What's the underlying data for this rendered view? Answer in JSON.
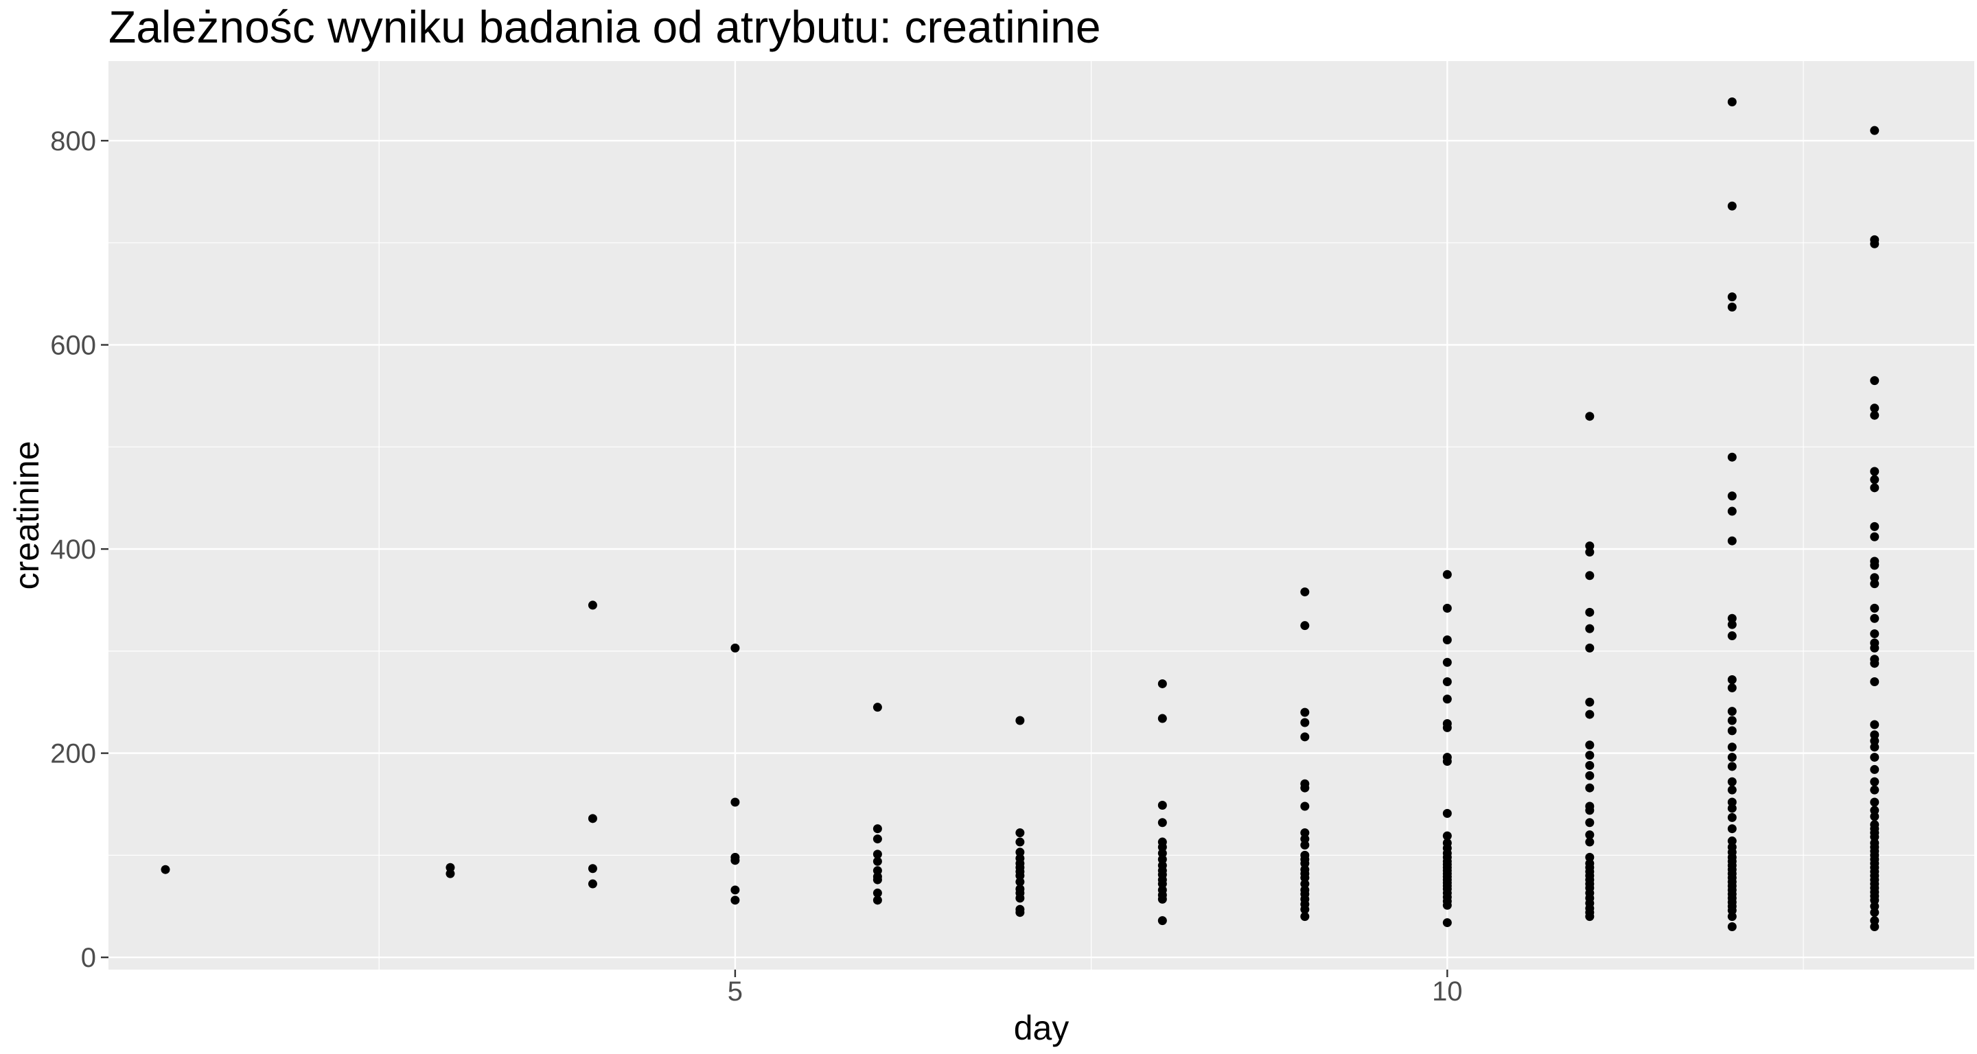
{
  "chart_data": {
    "type": "scatter",
    "title": "Zależnośc wyniku badania od atrybutu:  creatinine",
    "xlabel": "day",
    "ylabel": "creatinine",
    "xlim": [
      0.6,
      13.7
    ],
    "ylim": [
      -12,
      878
    ],
    "x_ticks": [
      5,
      10
    ],
    "y_ticks": [
      0,
      200,
      400,
      600,
      800
    ],
    "x_tick_labels": [
      "5",
      "10"
    ],
    "y_tick_labels": [
      "0",
      "200",
      "400",
      "600",
      "800"
    ],
    "grid": true,
    "legend": "none",
    "colors": {
      "panel": "#ebebeb",
      "grid": "#ffffff",
      "point": "#000000"
    },
    "points": [
      {
        "day": 1,
        "values": [
          86
        ]
      },
      {
        "day": 3,
        "values": [
          88,
          82
        ]
      },
      {
        "day": 4,
        "values": [
          345,
          136,
          87,
          72
        ]
      },
      {
        "day": 5,
        "values": [
          303,
          152,
          98,
          95,
          66,
          56
        ]
      },
      {
        "day": 6,
        "values": [
          245,
          126,
          116,
          101,
          94,
          85,
          79,
          76,
          63,
          56
        ]
      },
      {
        "day": 7,
        "values": [
          232,
          122,
          113,
          103,
          97,
          92,
          88,
          84,
          80,
          74,
          67,
          63,
          58,
          47,
          44
        ]
      },
      {
        "day": 8,
        "values": [
          268,
          234,
          149,
          132,
          113,
          108,
          102,
          96,
          90,
          85,
          81,
          76,
          72,
          66,
          61,
          57,
          36
        ]
      },
      {
        "day": 9,
        "values": [
          358,
          325,
          240,
          230,
          216,
          170,
          166,
          148,
          122,
          116,
          110,
          100,
          96,
          92,
          86,
          82,
          78,
          72,
          66,
          62,
          57,
          52,
          47,
          40
        ]
      },
      {
        "day": 10,
        "values": [
          375,
          342,
          311,
          289,
          270,
          253,
          229,
          225,
          196,
          192,
          141,
          119,
          112,
          107,
          102,
          98,
          94,
          91,
          88,
          85,
          82,
          79,
          76,
          73,
          70,
          67,
          63,
          59,
          55,
          51,
          34
        ]
      },
      {
        "day": 11,
        "values": [
          530,
          403,
          397,
          374,
          338,
          322,
          303,
          250,
          238,
          208,
          198,
          188,
          178,
          166,
          148,
          144,
          132,
          120,
          113,
          98,
          92,
          88,
          84,
          80,
          76,
          72,
          68,
          63,
          58,
          53,
          48,
          44,
          40
        ]
      },
      {
        "day": 12,
        "values": [
          838,
          736,
          647,
          637,
          490,
          452,
          437,
          408,
          332,
          326,
          315,
          272,
          264,
          241,
          232,
          222,
          206,
          196,
          187,
          172,
          164,
          152,
          146,
          137,
          126,
          114,
          108,
          103,
          98,
          94,
          90,
          86,
          82,
          78,
          74,
          70,
          66,
          62,
          58,
          54,
          50,
          46,
          40,
          30
        ]
      },
      {
        "day": 13,
        "values": [
          810,
          703,
          699,
          565,
          538,
          531,
          476,
          468,
          460,
          422,
          412,
          388,
          384,
          372,
          366,
          342,
          332,
          317,
          308,
          303,
          292,
          288,
          270,
          228,
          218,
          212,
          206,
          196,
          184,
          172,
          164,
          152,
          144,
          138,
          130,
          126,
          122,
          118,
          112,
          108,
          104,
          100,
          96,
          92,
          88,
          84,
          80,
          76,
          72,
          68,
          64,
          60,
          56,
          50,
          44,
          36,
          30
        ]
      }
    ]
  }
}
